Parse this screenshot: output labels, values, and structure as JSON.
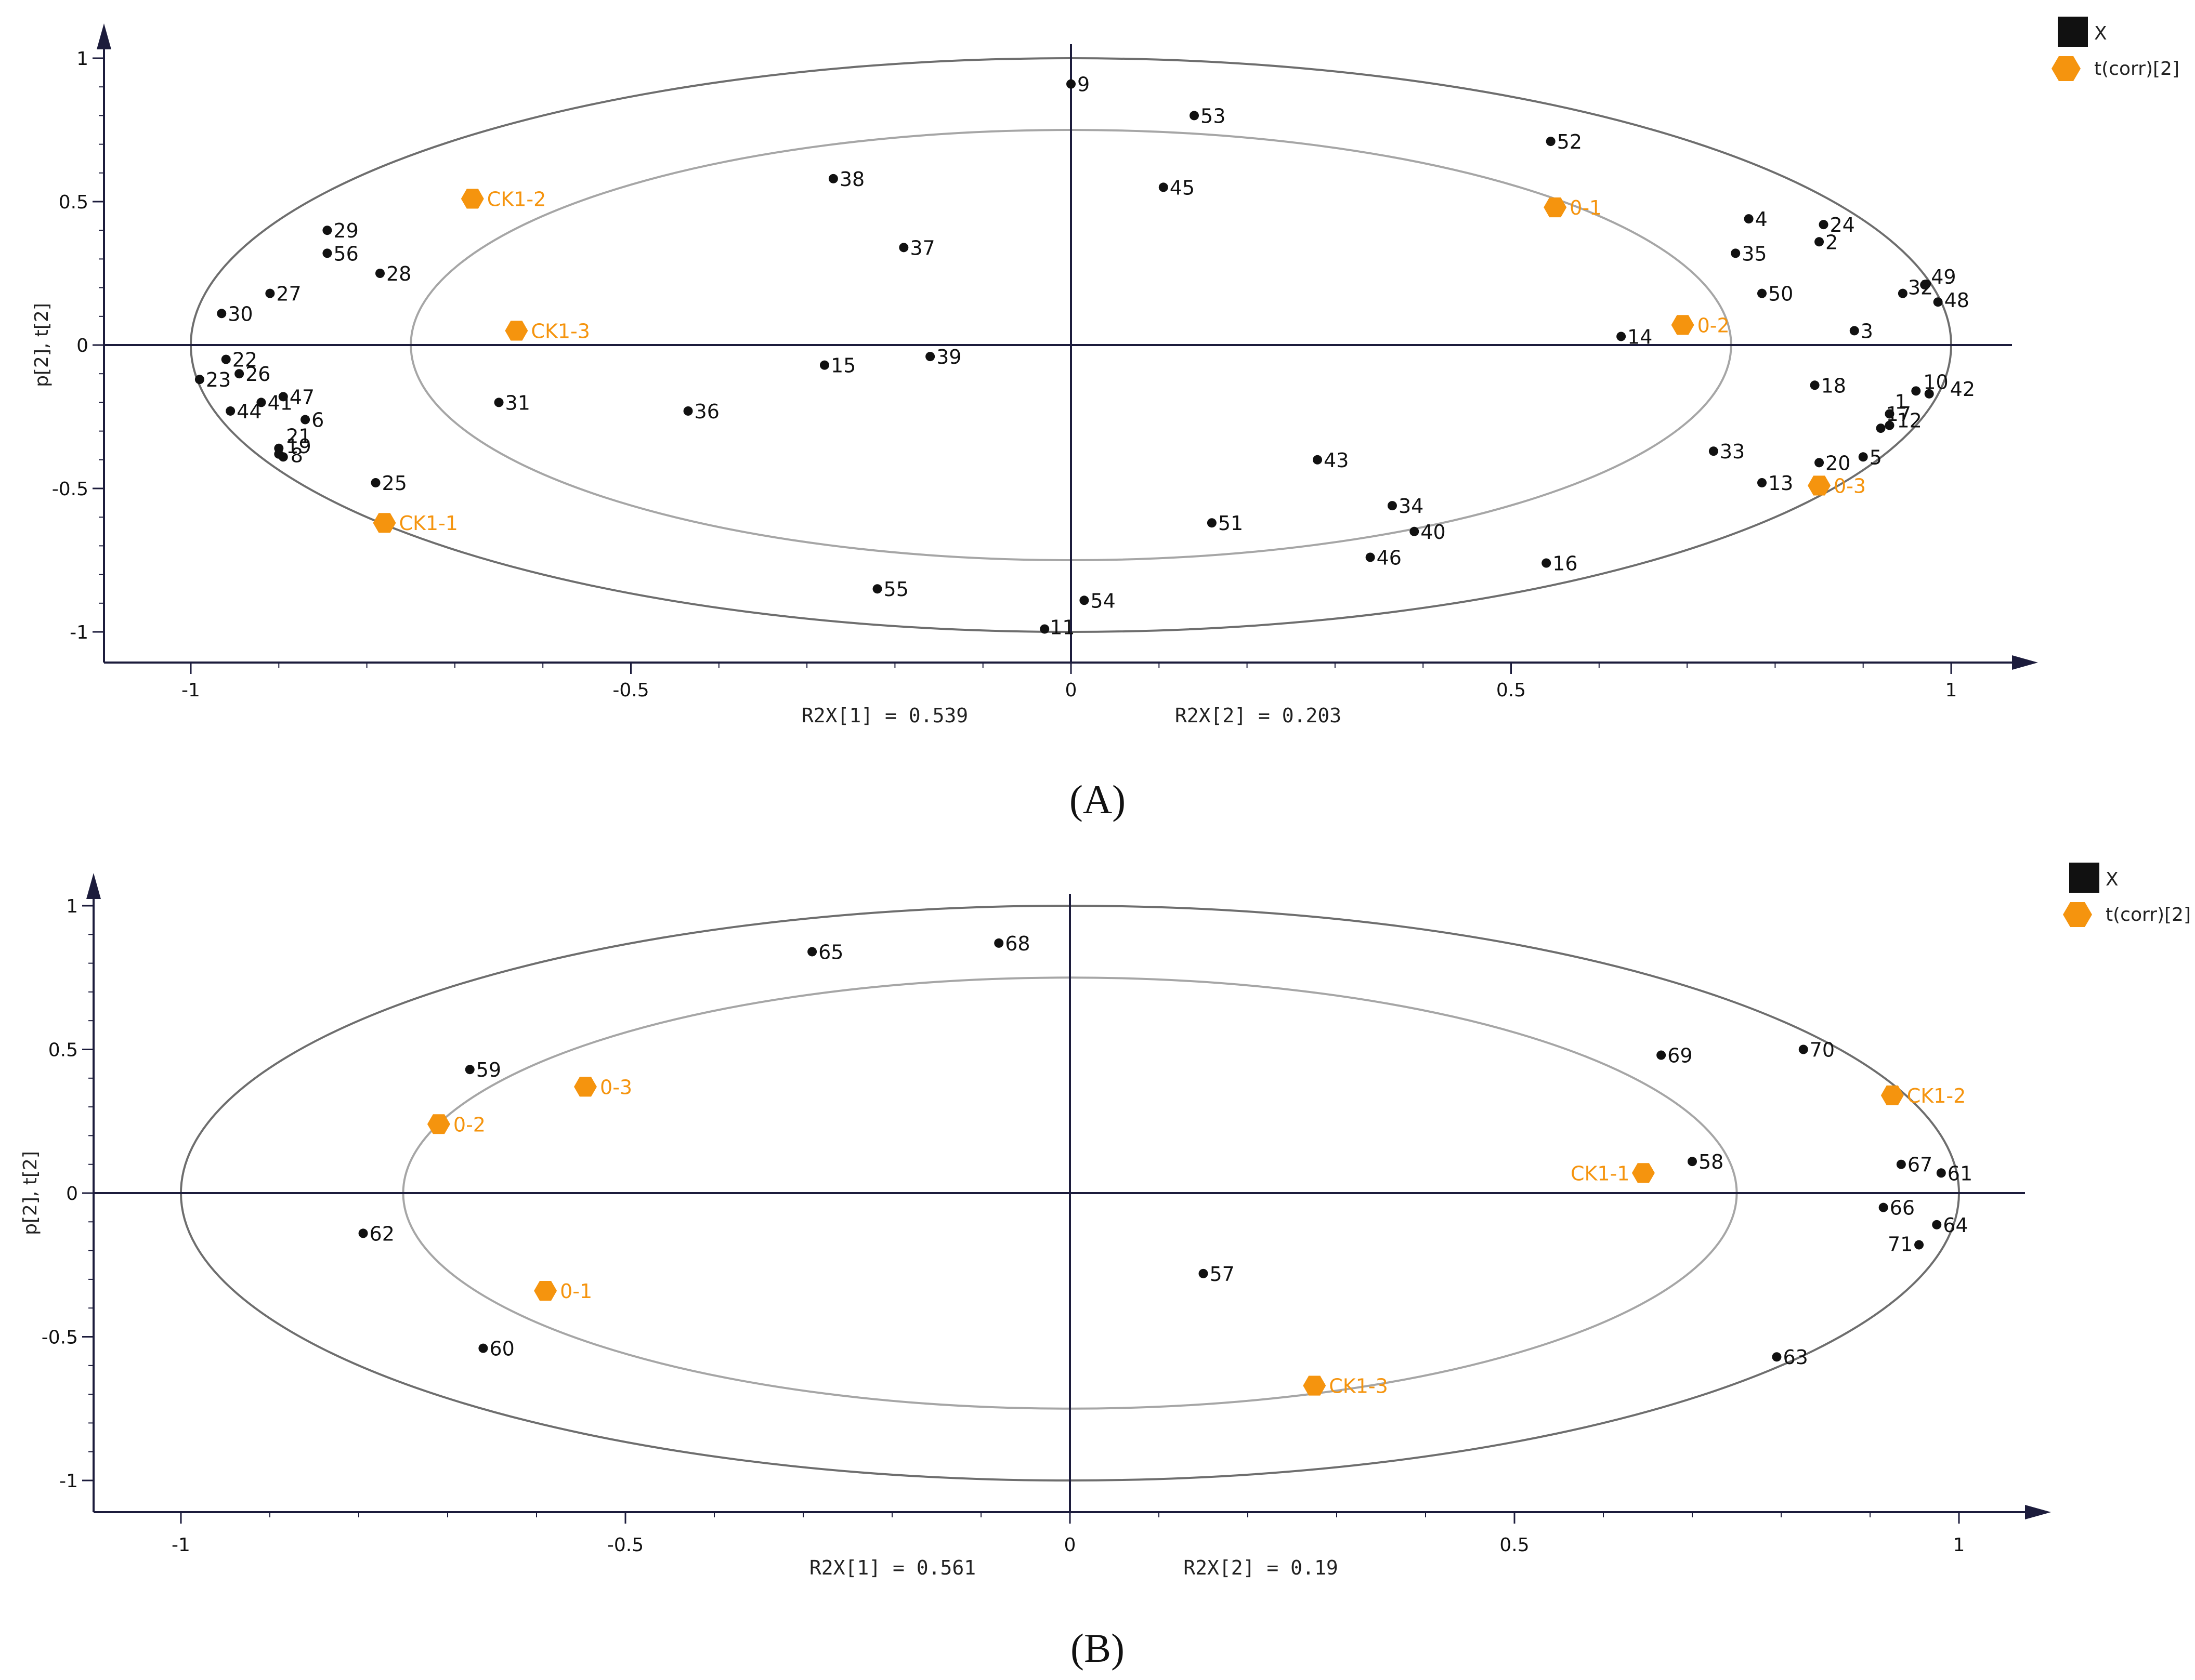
{
  "colors": {
    "variable": "#111111",
    "observation": "#f5940e",
    "axis": "#1c1c3c",
    "outer_ellipse": "#6e6e6e",
    "inner_ellipse": "#a6a6a6"
  },
  "legend": {
    "variable_label": "X",
    "observation_label": "t(corr)[2]",
    "variable_icon": "square-icon",
    "observation_icon": "hexagon-icon"
  },
  "chart_data": [
    {
      "type": "scatter",
      "panel_label": "(A)",
      "title": "",
      "ylabel": "p[2], t[2]",
      "xlabel_parts": [
        "R2X[1] = 0.539",
        "R2X[2] = 0.203"
      ],
      "xlim": [
        -1.1,
        1.1
      ],
      "ylim": [
        -1.1,
        1.1
      ],
      "xticks": [
        -1,
        -0.5,
        0,
        0.5,
        1
      ],
      "xtick_labels": [
        "-1",
        "-0.5",
        "0",
        "0.5",
        "1"
      ],
      "yticks": [
        1,
        0.5,
        0,
        -0.5,
        -1
      ],
      "ytick_labels": [
        "1",
        "0.5",
        "0",
        "-0.5",
        "-1"
      ],
      "ellipses": [
        {
          "name": "outer",
          "rx": 1.0,
          "ry": 1.0
        },
        {
          "name": "inner",
          "rx": 0.75,
          "ry": 0.75
        }
      ],
      "series": [
        {
          "name": "X",
          "marker": "circle",
          "points": [
            {
              "label": "1",
              "x": 0.93,
              "y": -0.24
            },
            {
              "label": "2",
              "x": 0.85,
              "y": 0.36
            },
            {
              "label": "3",
              "x": 0.89,
              "y": 0.05
            },
            {
              "label": "4",
              "x": 0.77,
              "y": 0.44
            },
            {
              "label": "5",
              "x": 0.9,
              "y": -0.39
            },
            {
              "label": "6",
              "x": -0.87,
              "y": -0.26
            },
            {
              "label": "8",
              "x": -0.895,
              "y": -0.39
            },
            {
              "label": "9",
              "x": 0.0,
              "y": 0.91
            },
            {
              "label": "10",
              "x": 0.96,
              "y": -0.16
            },
            {
              "label": "11",
              "x": -0.03,
              "y": -0.99
            },
            {
              "label": "12",
              "x": 0.93,
              "y": -0.28
            },
            {
              "label": "13",
              "x": 0.785,
              "y": -0.48
            },
            {
              "label": "14",
              "x": 0.625,
              "y": 0.03
            },
            {
              "label": "15",
              "x": -0.28,
              "y": -0.07
            },
            {
              "label": "16",
              "x": 0.54,
              "y": -0.76
            },
            {
              "label": "17",
              "x": 0.92,
              "y": -0.29
            },
            {
              "label": "18",
              "x": 0.845,
              "y": -0.14
            },
            {
              "label": "19",
              "x": -0.9,
              "y": -0.38
            },
            {
              "label": "20",
              "x": 0.85,
              "y": -0.41
            },
            {
              "label": "21",
              "x": -0.9,
              "y": -0.36
            },
            {
              "label": "22",
              "x": -0.96,
              "y": -0.05
            },
            {
              "label": "23",
              "x": -0.99,
              "y": -0.12
            },
            {
              "label": "24",
              "x": 0.855,
              "y": 0.42
            },
            {
              "label": "25",
              "x": -0.79,
              "y": -0.48
            },
            {
              "label": "26",
              "x": -0.945,
              "y": -0.1
            },
            {
              "label": "27",
              "x": -0.91,
              "y": 0.18
            },
            {
              "label": "28",
              "x": -0.785,
              "y": 0.25
            },
            {
              "label": "29",
              "x": -0.845,
              "y": 0.4
            },
            {
              "label": "30",
              "x": -0.965,
              "y": 0.11
            },
            {
              "label": "31",
              "x": -0.65,
              "y": -0.2
            },
            {
              "label": "32",
              "x": 0.945,
              "y": 0.18
            },
            {
              "label": "33",
              "x": 0.73,
              "y": -0.37
            },
            {
              "label": "34",
              "x": 0.365,
              "y": -0.56
            },
            {
              "label": "35",
              "x": 0.755,
              "y": 0.32
            },
            {
              "label": "36",
              "x": -0.435,
              "y": -0.23
            },
            {
              "label": "37",
              "x": -0.19,
              "y": 0.34
            },
            {
              "label": "38",
              "x": -0.27,
              "y": 0.58
            },
            {
              "label": "39",
              "x": -0.16,
              "y": -0.04
            },
            {
              "label": "40",
              "x": 0.39,
              "y": -0.65
            },
            {
              "label": "41",
              "x": -0.92,
              "y": -0.2
            },
            {
              "label": "42",
              "x": 0.975,
              "y": -0.17
            },
            {
              "label": "43",
              "x": 0.28,
              "y": -0.4
            },
            {
              "label": "44",
              "x": -0.955,
              "y": -0.23
            },
            {
              "label": "45",
              "x": 0.105,
              "y": 0.55
            },
            {
              "label": "46",
              "x": 0.34,
              "y": -0.74
            },
            {
              "label": "47",
              "x": -0.895,
              "y": -0.18
            },
            {
              "label": "48",
              "x": 0.985,
              "y": 0.15
            },
            {
              "label": "49",
              "x": 0.97,
              "y": 0.21
            },
            {
              "label": "50",
              "x": 0.785,
              "y": 0.18
            },
            {
              "label": "51",
              "x": 0.16,
              "y": -0.62
            },
            {
              "label": "52",
              "x": 0.545,
              "y": 0.71
            },
            {
              "label": "53",
              "x": 0.14,
              "y": 0.8
            },
            {
              "label": "54",
              "x": 0.015,
              "y": -0.89
            },
            {
              "label": "55",
              "x": -0.22,
              "y": -0.85
            },
            {
              "label": "56",
              "x": -0.845,
              "y": 0.32
            }
          ]
        },
        {
          "name": "t(corr)[2]",
          "marker": "hexagon",
          "points": [
            {
              "label": "CK1-1",
              "x": -0.78,
              "y": -0.62
            },
            {
              "label": "CK1-2",
              "x": -0.68,
              "y": 0.51
            },
            {
              "label": "CK1-3",
              "x": -0.63,
              "y": 0.05
            },
            {
              "label": "0-1",
              "x": 0.55,
              "y": 0.48
            },
            {
              "label": "0-2",
              "x": 0.695,
              "y": 0.07
            },
            {
              "label": "0-3",
              "x": 0.85,
              "y": -0.49
            }
          ]
        }
      ]
    },
    {
      "type": "scatter",
      "panel_label": "(B)",
      "title": "",
      "ylabel": "p[2], t[2]",
      "xlabel_parts": [
        "R2X[1] = 0.561",
        "R2X[2] = 0.19"
      ],
      "xlim": [
        -1.1,
        1.1
      ],
      "ylim": [
        -1.1,
        1.1
      ],
      "xticks": [
        -1,
        -0.5,
        0,
        0.5,
        1
      ],
      "xtick_labels": [
        "-1",
        "-0.5",
        "0",
        "0.5",
        "1"
      ],
      "yticks": [
        1,
        0.5,
        0,
        -0.5,
        -1
      ],
      "ytick_labels": [
        "1",
        "0.5",
        "0",
        "-0.5",
        "-1"
      ],
      "ellipses": [
        {
          "name": "outer",
          "rx": 1.0,
          "ry": 1.0
        },
        {
          "name": "inner",
          "rx": 0.75,
          "ry": 0.75
        }
      ],
      "series": [
        {
          "name": "X",
          "marker": "circle",
          "points": [
            {
              "label": "57",
              "x": 0.15,
              "y": -0.28
            },
            {
              "label": "58",
              "x": 0.7,
              "y": 0.11
            },
            {
              "label": "59",
              "x": -0.675,
              "y": 0.43
            },
            {
              "label": "60",
              "x": -0.66,
              "y": -0.54
            },
            {
              "label": "61",
              "x": 0.98,
              "y": 0.07
            },
            {
              "label": "62",
              "x": -0.795,
              "y": -0.14
            },
            {
              "label": "63",
              "x": 0.795,
              "y": -0.57
            },
            {
              "label": "64",
              "x": 0.975,
              "y": -0.11
            },
            {
              "label": "65",
              "x": -0.29,
              "y": 0.84
            },
            {
              "label": "66",
              "x": 0.915,
              "y": -0.05
            },
            {
              "label": "67",
              "x": 0.935,
              "y": 0.1
            },
            {
              "label": "68",
              "x": -0.08,
              "y": 0.87
            },
            {
              "label": "69",
              "x": 0.665,
              "y": 0.48
            },
            {
              "label": "70",
              "x": 0.825,
              "y": 0.5
            },
            {
              "label": "71",
              "x": 0.955,
              "y": -0.18
            }
          ]
        },
        {
          "name": "t(corr)[2]",
          "marker": "hexagon",
          "points": [
            {
              "label": "CK1-1",
              "x": 0.645,
              "y": 0.07
            },
            {
              "label": "CK1-2",
              "x": 0.925,
              "y": 0.34
            },
            {
              "label": "CK1-3",
              "x": 0.275,
              "y": -0.67
            },
            {
              "label": "0-1",
              "x": -0.59,
              "y": -0.34
            },
            {
              "label": "0-2",
              "x": -0.71,
              "y": 0.24
            },
            {
              "label": "0-3",
              "x": -0.545,
              "y": 0.37
            }
          ]
        }
      ]
    }
  ]
}
